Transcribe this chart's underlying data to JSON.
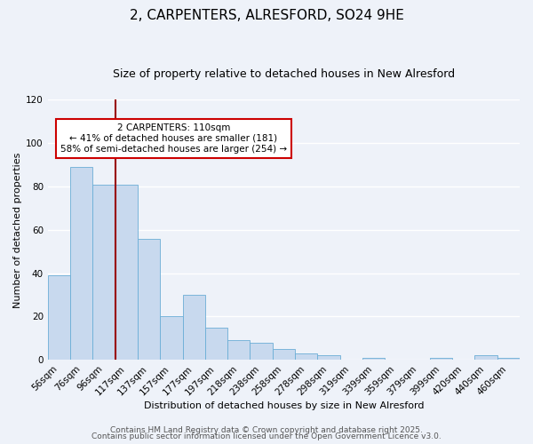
{
  "title": "2, CARPENTERS, ALRESFORD, SO24 9HE",
  "subtitle": "Size of property relative to detached houses in New Alresford",
  "xlabel": "Distribution of detached houses by size in New Alresford",
  "ylabel": "Number of detached properties",
  "bar_labels": [
    "56sqm",
    "76sqm",
    "96sqm",
    "117sqm",
    "137sqm",
    "157sqm",
    "177sqm",
    "197sqm",
    "218sqm",
    "238sqm",
    "258sqm",
    "278sqm",
    "298sqm",
    "319sqm",
    "339sqm",
    "359sqm",
    "379sqm",
    "399sqm",
    "420sqm",
    "440sqm",
    "460sqm"
  ],
  "bar_values": [
    39,
    89,
    81,
    81,
    56,
    20,
    30,
    15,
    9,
    8,
    5,
    3,
    2,
    0,
    1,
    0,
    0,
    1,
    0,
    2,
    1
  ],
  "bar_color": "#c8d9ee",
  "bar_edge_color": "#6baed6",
  "vline_x": 2.5,
  "vline_color": "#990000",
  "annotation_text": "2 CARPENTERS: 110sqm\n← 41% of detached houses are smaller (181)\n58% of semi-detached houses are larger (254) →",
  "annotation_box_color": "#ffffff",
  "annotation_box_edge": "#cc0000",
  "ylim": [
    0,
    120
  ],
  "yticks": [
    0,
    20,
    40,
    60,
    80,
    100,
    120
  ],
  "footer1": "Contains HM Land Registry data © Crown copyright and database right 2025.",
  "footer2": "Contains public sector information licensed under the Open Government Licence v3.0.",
  "background_color": "#eef2f9",
  "plot_background": "#eef2f9",
  "grid_color": "#ffffff",
  "title_fontsize": 11,
  "subtitle_fontsize": 9,
  "axis_label_fontsize": 8,
  "tick_fontsize": 7.5,
  "annotation_fontsize": 7.5,
  "footer_fontsize": 6.5
}
